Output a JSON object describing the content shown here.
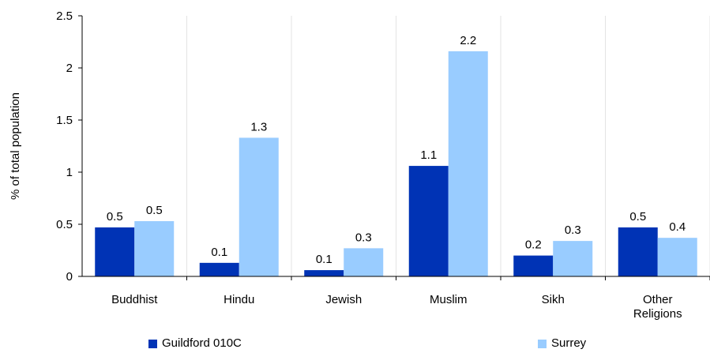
{
  "chart_data": {
    "type": "bar",
    "ylabel": "% of total population",
    "xlabel": "",
    "ylim": [
      0,
      2.5
    ],
    "yticks": [
      "0",
      "0.5",
      "1",
      "1.5",
      "2",
      "2.5"
    ],
    "categories": [
      [
        "Buddhist"
      ],
      [
        "Hindu"
      ],
      [
        "Jewish"
      ],
      [
        "Muslim"
      ],
      [
        "Sikh"
      ],
      [
        "Other",
        "Religions"
      ]
    ],
    "series": [
      {
        "name": "Guildford 010C",
        "color": "#0033b5",
        "values": [
          0.47,
          0.13,
          0.06,
          1.06,
          0.2,
          0.47
        ],
        "labels": [
          "0.5",
          "0.1",
          "0.1",
          "1.1",
          "0.2",
          "0.5"
        ]
      },
      {
        "name": "Surrey",
        "color": "#99ccff",
        "values": [
          0.53,
          1.33,
          0.27,
          2.16,
          0.34,
          0.37
        ],
        "labels": [
          "0.5",
          "1.3",
          "0.3",
          "2.2",
          "0.3",
          "0.4"
        ]
      }
    ],
    "grid": true,
    "legend_position": "bottom"
  }
}
